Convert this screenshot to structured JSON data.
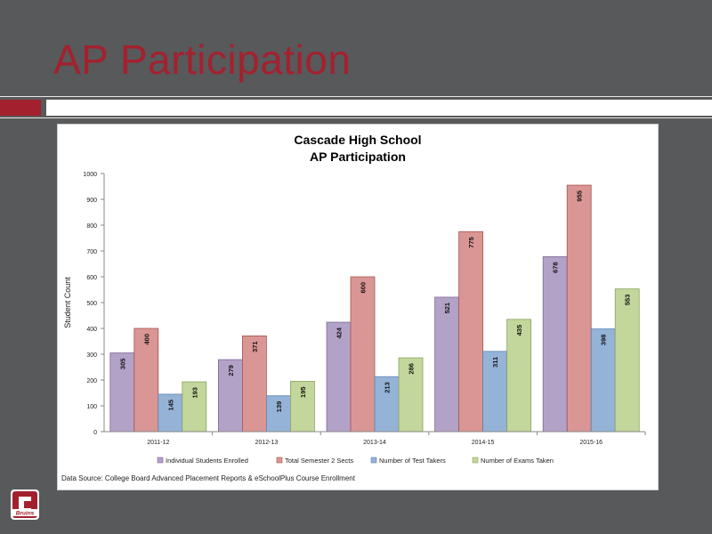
{
  "slide": {
    "title": "AP Participation"
  },
  "colors": {
    "background": "#58595b",
    "title_red": "#a3212e",
    "series": [
      "#b3a2c7",
      "#d99694",
      "#95b3d7",
      "#c3d69b"
    ],
    "series_stroke": [
      "#7b6a93",
      "#a65451",
      "#5d83b3",
      "#8aa35e"
    ]
  },
  "logo": {
    "icon": "bruins-c-logo-icon",
    "text": "Bruins"
  },
  "chart_data": {
    "type": "bar",
    "title": "Cascade High School",
    "subtitle": "AP Participation",
    "ylabel": "Student Count",
    "xlabel": "",
    "ylim": [
      0,
      1000
    ],
    "yticks": [
      "0",
      "100",
      "200",
      "300",
      "400",
      "500",
      "600",
      "700",
      "800",
      "900",
      "1000"
    ],
    "categories": [
      "2011-12",
      "2012-13",
      "2013-14",
      "2014-15",
      "2015-16"
    ],
    "series": [
      {
        "name": "Individual Students Enrolled",
        "values": [
          305,
          279,
          424,
          521,
          678
        ]
      },
      {
        "name": "Total Semester 2 Sects",
        "values": [
          400,
          371,
          600,
          775,
          955
        ]
      },
      {
        "name": "Number of Test Takers",
        "values": [
          145,
          139,
          213,
          311,
          398
        ]
      },
      {
        "name": "Number of Exams Taken",
        "values": [
          193,
          195,
          286,
          435,
          553
        ]
      }
    ],
    "legend_position": "bottom",
    "grid": false,
    "source": "Data Source: College Board Advanced Placement Reports & eSchoolPlus Course Enrollment"
  }
}
